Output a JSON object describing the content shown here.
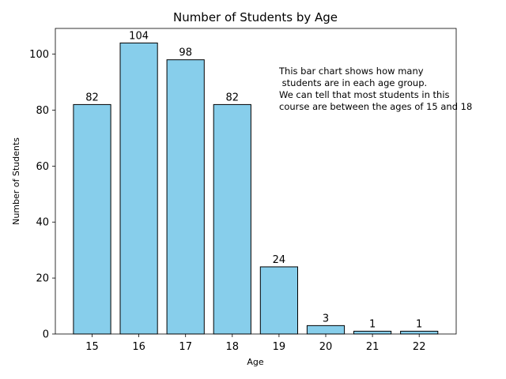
{
  "chart_data": {
    "type": "bar",
    "title": "Number of Students by Age",
    "xlabel": "Age",
    "ylabel": "Number of Students",
    "categories": [
      "15",
      "16",
      "17",
      "18",
      "19",
      "20",
      "21",
      "22"
    ],
    "values": [
      82,
      104,
      98,
      82,
      24,
      3,
      1,
      1
    ],
    "ylim": [
      0,
      109.2
    ],
    "yticks": [
      0,
      20,
      40,
      60,
      80,
      100
    ],
    "grid": false,
    "bar_color": "#87ceeb",
    "bar_edge_color": "#000000",
    "annotation": [
      "This bar chart shows how many",
      " students are in each age group.",
      "We can tell that most students in this",
      "course are between the ages of 15 and 18"
    ]
  }
}
